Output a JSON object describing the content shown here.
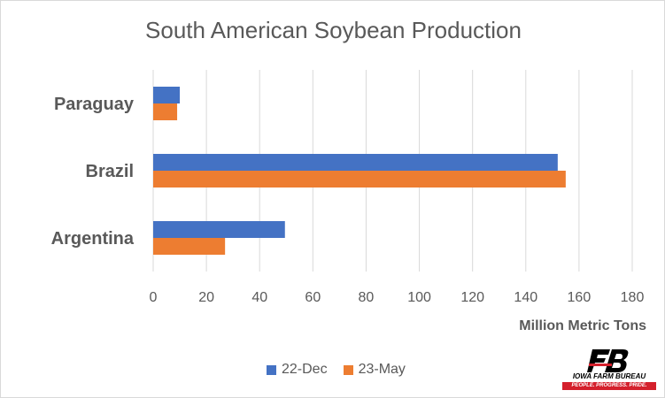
{
  "chart_data": {
    "type": "bar",
    "orientation": "horizontal",
    "title": "South American Soybean Production",
    "xlabel": "Million Metric Tons",
    "categories": [
      "Paraguay",
      "Brazil",
      "Argentina"
    ],
    "series": [
      {
        "name": "22-Dec",
        "color": "#4472c4",
        "values": [
          10,
          152,
          49.5
        ]
      },
      {
        "name": "23-May",
        "color": "#ed7d31",
        "values": [
          9,
          155,
          27
        ]
      }
    ],
    "xlim": [
      0,
      180
    ],
    "xticks": [
      "0",
      "20",
      "40",
      "60",
      "80",
      "100",
      "120",
      "140",
      "160",
      "180"
    ],
    "grid": true,
    "legend_position": "bottom"
  },
  "logo": {
    "name": "IOWA FARM BUREAU",
    "tagline": "PEOPLE. PROGRESS. PRIDE.",
    "mark_color": "#000000",
    "accent_color": "#d4202c"
  }
}
